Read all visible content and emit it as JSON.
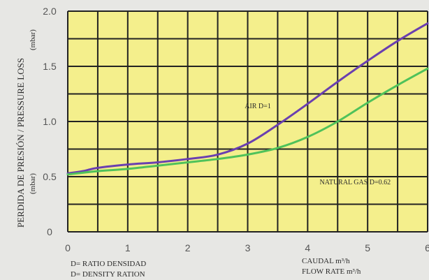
{
  "chart_data": {
    "type": "line",
    "xlim": [
      0,
      6
    ],
    "ylim": [
      0,
      2.0
    ],
    "x_ticks": [
      "0",
      "1",
      "2",
      "3",
      "4",
      "5",
      "6"
    ],
    "y_ticks": [
      "0",
      "0.5",
      "1.0",
      "1.5",
      "2.0"
    ],
    "ylabel": "PERDIDA DE PRESIÓN  /  PRESSURE LOSS",
    "ylabel_unit": "(mbar)",
    "ylabel_unit_2": "(mbar)",
    "xlabel_es": "CAUDAL  m³/h",
    "xlabel_en": "FLOW RATE  m³/h",
    "legend_es": "D= RATIO DENSIDAD",
    "legend_en": "D= DENSITY RATION",
    "grid": true,
    "plot_background": "#f4ef8c",
    "grid_color": "#222222",
    "series": [
      {
        "name": "AIR D=1",
        "color": "#6a3fb0",
        "x": [
          0,
          0.25,
          0.5,
          1.0,
          1.5,
          2.0,
          2.5,
          3.0,
          3.5,
          4.0,
          4.5,
          5.0,
          5.5,
          6.0
        ],
        "y": [
          0.53,
          0.55,
          0.58,
          0.61,
          0.63,
          0.66,
          0.7,
          0.8,
          0.97,
          1.16,
          1.36,
          1.55,
          1.73,
          1.89
        ]
      },
      {
        "name": "NATURAL GAS D=0.62",
        "color": "#4fc25a",
        "x": [
          0,
          0.5,
          1.0,
          1.5,
          2.0,
          2.5,
          3.0,
          3.5,
          4.0,
          4.5,
          5.0,
          5.5,
          6.0
        ],
        "y": [
          0.52,
          0.55,
          0.57,
          0.6,
          0.63,
          0.66,
          0.7,
          0.76,
          0.86,
          1.0,
          1.17,
          1.33,
          1.48
        ]
      }
    ],
    "annotations": [
      {
        "text": "AIR D=1",
        "x": 2.95,
        "y": 1.12
      },
      {
        "text": "NATURAL GAS D=0.62",
        "x": 4.2,
        "y": 0.43
      }
    ]
  }
}
